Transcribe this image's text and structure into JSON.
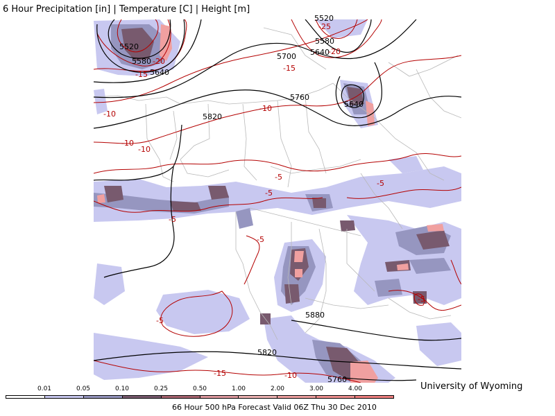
{
  "title": "6 Hour Precipitation [in] | Temperature [C] | Height [m]",
  "credit": "University of Wyoming",
  "footer": "66 Hour 500 hPa Forecast Valid 06Z Thu 30 Dec 2010",
  "legend": {
    "ticks": [
      "0.01",
      "0.05",
      "0.10",
      "0.25",
      "0.50",
      "1.00",
      "2.00",
      "3.00",
      "4.00"
    ],
    "colors": [
      "#ffffff",
      "#c8c8f0",
      "#9696c0",
      "#785a6e",
      "#a86470",
      "#e09aa0",
      "#f0b4b4",
      "#f0a0a0",
      "#f09090",
      "#f08080"
    ]
  },
  "colors": {
    "height_contour": "#000000",
    "temperature_contour": "#b40000",
    "border": "#b8b8b8",
    "precip_light": "#c8c8f0",
    "precip_mid": "#9696c0",
    "precip_dark": "#785a6e",
    "precip_heavy": "#f0a0a0"
  },
  "height_labels": [
    "5520",
    "5580",
    "5640",
    "5700",
    "5760",
    "5820",
    "5880",
    "5520",
    "5580",
    "5640",
    "5640",
    "5760",
    "5820"
  ],
  "temp_labels": [
    "-25",
    "-20",
    "-20",
    "-15",
    "-15",
    "-10",
    "-10",
    "-10",
    "-10",
    "-5",
    "-5",
    "-5",
    "-5",
    "-5",
    "-5",
    "-5",
    "-10",
    "-15"
  ]
}
